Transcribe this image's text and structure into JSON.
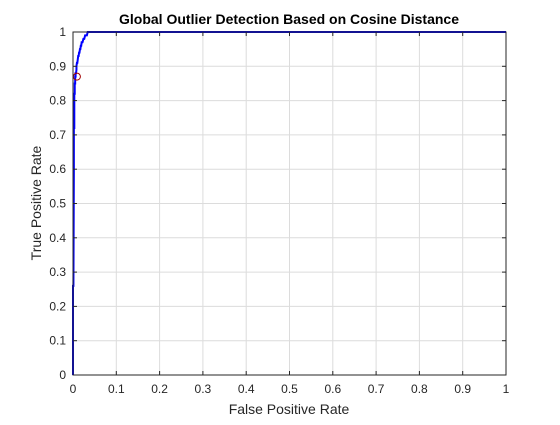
{
  "chart_data": {
    "type": "line",
    "title": "Global Outlier Detection Based on Cosine Distance",
    "xlabel": "False Positive Rate",
    "ylabel": "True Positive Rate",
    "xlim": [
      0,
      1
    ],
    "ylim": [
      0,
      1
    ],
    "xticks": [
      "0",
      "0.1",
      "0.2",
      "0.3",
      "0.4",
      "0.5",
      "0.6",
      "0.7",
      "0.8",
      "0.9",
      "1"
    ],
    "yticks": [
      "0",
      "0.1",
      "0.2",
      "0.3",
      "0.4",
      "0.5",
      "0.6",
      "0.7",
      "0.8",
      "0.9",
      "1"
    ],
    "grid": true,
    "series": [
      {
        "color": "#0000ff",
        "x": [
          0,
          0,
          0.001,
          0.002,
          0.002,
          0.003,
          0.003,
          0.004,
          0.004,
          0.005,
          0.005,
          0.006,
          0.006,
          0.007,
          0.008,
          0.008,
          0.009,
          0.01,
          0.011,
          0.012,
          0.013,
          0.014,
          0.015,
          0.016,
          0.017,
          0.018,
          0.019,
          0.02,
          0.022,
          0.024,
          0.026,
          0.028,
          0.03,
          0.032,
          0.034,
          0.036,
          0.038,
          0.04,
          0.045,
          1.0
        ],
        "y": [
          0,
          0.26,
          0.26,
          0.6,
          0.72,
          0.72,
          0.82,
          0.82,
          0.85,
          0.85,
          0.87,
          0.87,
          0.88,
          0.88,
          0.89,
          0.9,
          0.91,
          0.91,
          0.92,
          0.93,
          0.93,
          0.94,
          0.94,
          0.95,
          0.95,
          0.96,
          0.96,
          0.97,
          0.97,
          0.98,
          0.98,
          0.99,
          0.99,
          0.99,
          1.0,
          1.0,
          1.0,
          1.0,
          1.0,
          1.0
        ]
      }
    ],
    "marker": {
      "x": 0.009,
      "y": 0.87,
      "shape": "circle",
      "color": "#a00000"
    }
  }
}
